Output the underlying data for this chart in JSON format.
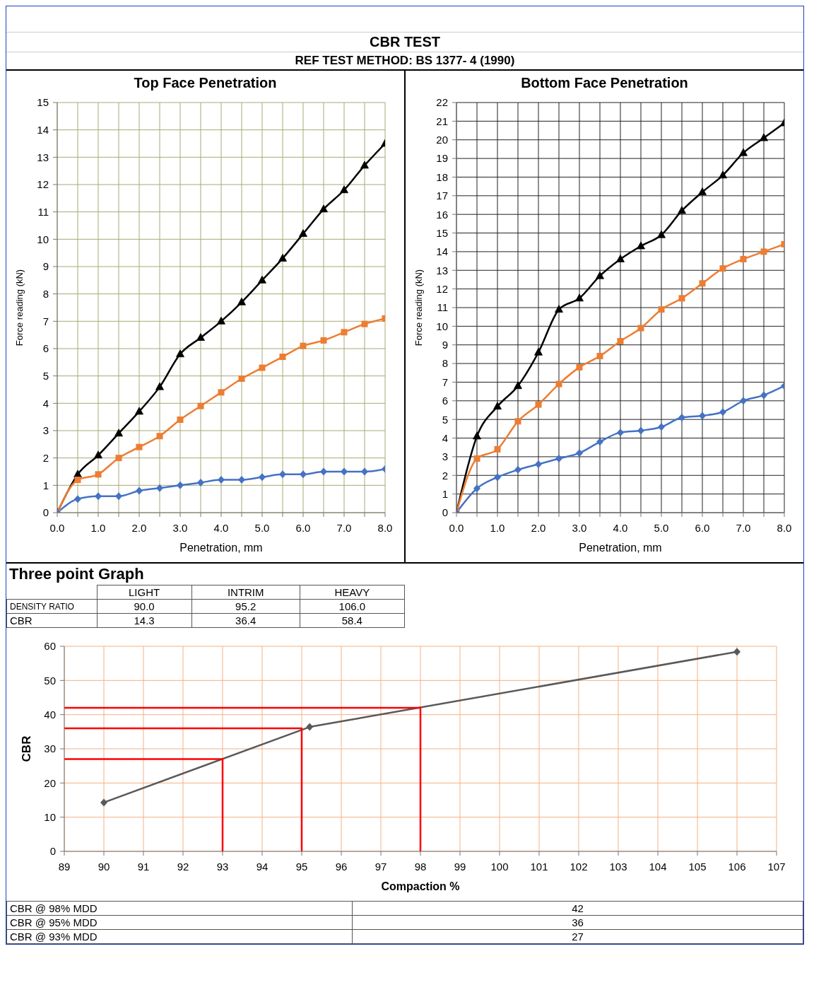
{
  "chart_data": [
    {
      "type": "line",
      "title": "Top Face Penetration",
      "annotations": [
        "CBR TEST",
        "REF TEST METHOD: BS 1377- 4 (1990)"
      ],
      "xlabel": "Penetration, mm",
      "ylabel": "Force reading (kN)",
      "x": [
        0,
        0.5,
        1,
        1.5,
        2,
        2.5,
        3,
        3.5,
        4,
        4.5,
        5,
        5.5,
        6,
        6.5,
        7,
        7.5,
        8
      ],
      "series": [
        {
          "color": "#000000",
          "marker": "triangle",
          "values": [
            0,
            1.4,
            2.1,
            2.9,
            3.7,
            4.6,
            5.8,
            6.4,
            7.0,
            7.7,
            8.5,
            9.3,
            10.2,
            11.1,
            11.8,
            12.7,
            13.5
          ]
        },
        {
          "color": "#ed7d31",
          "marker": "square",
          "values": [
            0,
            1.2,
            1.4,
            2.0,
            2.4,
            2.8,
            3.4,
            3.9,
            4.4,
            4.9,
            5.3,
            5.7,
            6.1,
            6.3,
            6.6,
            6.9,
            7.1
          ]
        },
        {
          "color": "#4472c4",
          "marker": "diamond",
          "values": [
            0,
            0.5,
            0.6,
            0.6,
            0.8,
            0.9,
            1.0,
            1.1,
            1.2,
            1.2,
            1.3,
            1.4,
            1.4,
            1.5,
            1.5,
            1.5,
            1.6
          ]
        }
      ],
      "xlim": [
        0,
        8
      ],
      "xticks": [
        {
          "value": 0,
          "label": "0.0"
        },
        {
          "value": 0.5,
          "label": null
        },
        {
          "value": 1,
          "label": "1.0"
        },
        {
          "value": 1.5,
          "label": null
        },
        {
          "value": 2,
          "label": "2.0"
        },
        {
          "value": 2.5,
          "label": null
        },
        {
          "value": 3,
          "label": "3.0"
        },
        {
          "value": 3.5,
          "label": null
        },
        {
          "value": 4,
          "label": "4.0"
        },
        {
          "value": 4.5,
          "label": null
        },
        {
          "value": 5,
          "label": "5.0"
        },
        {
          "value": 5.5,
          "label": null
        },
        {
          "value": 6,
          "label": "6.0"
        },
        {
          "value": 6.5,
          "label": null
        },
        {
          "value": 7,
          "label": "7.0"
        },
        {
          "value": 7.5,
          "label": null
        },
        {
          "value": 8,
          "label": "8.0"
        }
      ],
      "ylim": [
        0,
        15
      ],
      "yticks": [
        0,
        1,
        2,
        3,
        4,
        5,
        6,
        7,
        8,
        9,
        10,
        11,
        12,
        13,
        14,
        15
      ],
      "grid": true,
      "line_style": "solid"
    },
    {
      "type": "line",
      "title": "Bottom Face Penetration",
      "xlabel": "Penetration, mm",
      "ylabel": "Force reading (kN)",
      "x": [
        0,
        0.5,
        1,
        1.5,
        2,
        2.5,
        3,
        3.5,
        4,
        4.5,
        5,
        5.5,
        6,
        6.5,
        7,
        7.5,
        8
      ],
      "series": [
        {
          "color": "#000000",
          "marker": "triangle",
          "values": [
            0,
            4.1,
            5.7,
            6.8,
            8.6,
            10.9,
            11.5,
            12.7,
            13.6,
            14.3,
            14.9,
            16.2,
            17.2,
            18.1,
            19.3,
            20.1,
            20.9
          ]
        },
        {
          "color": "#ed7d31",
          "marker": "square",
          "values": [
            0,
            2.9,
            3.4,
            4.9,
            5.8,
            6.9,
            7.8,
            8.4,
            9.2,
            9.9,
            10.9,
            11.5,
            12.3,
            13.1,
            13.6,
            14.0,
            14.4
          ]
        },
        {
          "color": "#4472c4",
          "marker": "diamond",
          "values": [
            0,
            1.3,
            1.9,
            2.3,
            2.6,
            2.9,
            3.2,
            3.8,
            4.3,
            4.4,
            4.6,
            5.1,
            5.2,
            5.4,
            6.0,
            6.3,
            6.8
          ]
        }
      ],
      "xlim": [
        0,
        8
      ],
      "xticks": [
        {
          "value": 0,
          "label": "0.0"
        },
        {
          "value": 0.5,
          "label": null
        },
        {
          "value": 1,
          "label": "1.0"
        },
        {
          "value": 1.5,
          "label": null
        },
        {
          "value": 2,
          "label": "2.0"
        },
        {
          "value": 2.5,
          "label": null
        },
        {
          "value": 3,
          "label": "3.0"
        },
        {
          "value": 3.5,
          "label": null
        },
        {
          "value": 4,
          "label": "4.0"
        },
        {
          "value": 4.5,
          "label": null
        },
        {
          "value": 5,
          "label": "5.0"
        },
        {
          "value": 5.5,
          "label": null
        },
        {
          "value": 6,
          "label": "6.0"
        },
        {
          "value": 6.5,
          "label": null
        },
        {
          "value": 7,
          "label": "7.0"
        },
        {
          "value": 7.5,
          "label": null
        },
        {
          "value": 8,
          "label": "8.0"
        }
      ],
      "ylim": [
        0,
        22
      ],
      "yticks": [
        0,
        1,
        2,
        3,
        4,
        5,
        6,
        7,
        8,
        9,
        10,
        11,
        12,
        13,
        14,
        15,
        16,
        17,
        18,
        19,
        20,
        21,
        22
      ],
      "grid": true,
      "line_style": "solid"
    },
    {
      "type": "line",
      "title": "Three point Graph",
      "xlabel": "Compaction %",
      "ylabel": "CBR",
      "annotations": [
        "LIGHT",
        "INTRIM",
        "HEAVY",
        "DENSITY RATIO",
        "90.0",
        "95.2",
        "106.0",
        "CBR",
        "14.3",
        "36.4",
        "58.4",
        "CBR @ 98% MDD",
        "42",
        "CBR @ 95% MDD",
        "36",
        "CBR @ 93% MDD",
        "27"
      ],
      "series": [
        {
          "color": "#595959",
          "marker": "diamond",
          "x": [
            90,
            95.2,
            106
          ],
          "values": [
            14.3,
            36.4,
            58.4
          ]
        },
        {
          "color": "#ff0000",
          "marker": "none",
          "x": [
            89,
            93,
            93
          ],
          "values": [
            27,
            27,
            0
          ]
        },
        {
          "color": "#ff0000",
          "marker": "none",
          "x": [
            89,
            95,
            95
          ],
          "values": [
            36,
            36,
            0
          ]
        },
        {
          "color": "#ff0000",
          "marker": "none",
          "x": [
            89,
            98,
            98
          ],
          "values": [
            42,
            42,
            0
          ]
        }
      ],
      "xlim": [
        89,
        107
      ],
      "xticks": [
        89,
        90,
        91,
        92,
        93,
        94,
        95,
        96,
        97,
        98,
        99,
        100,
        101,
        102,
        103,
        104,
        105,
        106,
        107
      ],
      "ylim": [
        0,
        60
      ],
      "yticks": [
        0,
        10,
        20,
        30,
        40,
        50,
        60
      ],
      "grid": true,
      "line_style": "solid"
    }
  ]
}
